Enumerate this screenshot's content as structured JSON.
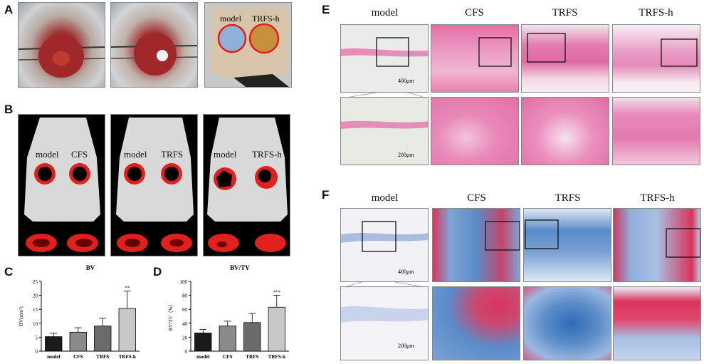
{
  "panels": {
    "A": {
      "label": "A",
      "tags": [
        "model",
        "TRFS-h"
      ]
    },
    "B": {
      "label": "B",
      "tags": [
        "model",
        "CFS",
        "model",
        "TRFS",
        "model",
        "TRFS-h"
      ]
    },
    "C": {
      "label": "C"
    },
    "D": {
      "label": "D"
    },
    "E": {
      "label": "E",
      "headers": [
        "model",
        "CFS",
        "TRFS",
        "TRFS-h"
      ],
      "scale_top": "400μm",
      "scale_bottom": "200μm"
    },
    "F": {
      "label": "F",
      "headers": [
        "model",
        "CFS",
        "TRFS",
        "TRFS-h"
      ],
      "scale_top": "400μm",
      "scale_bottom": "200μm"
    }
  },
  "colors": {
    "defect_ring": "#e0201c",
    "bone": "#d9d9d9",
    "he_pink": "#e98cb8",
    "masson_blue": "#5a8cc8",
    "masson_red": "#d9345c"
  },
  "chart_data": [
    {
      "type": "bar",
      "title": "BV",
      "ylabel": "BV(mm³)",
      "categories": [
        "model",
        "CFS",
        "TRFS",
        "TRFS-h"
      ],
      "values": [
        5.2,
        6.8,
        9.0,
        15.3
      ],
      "errors": [
        1.2,
        1.6,
        2.8,
        6.2
      ],
      "significance": [
        "",
        "",
        "",
        "**"
      ],
      "ylim": [
        0,
        25
      ],
      "yticks": [
        "0",
        "5",
        "10",
        "15",
        "20",
        "25"
      ],
      "colors": [
        "#1a1a1a",
        "#8a8a8a",
        "#6b6b6b",
        "#c8c8c8"
      ]
    },
    {
      "type": "bar",
      "title": "BV/TV",
      "ylabel": "BV/TV（%）",
      "categories": [
        "model",
        "CFS",
        "TRFS",
        "TRFS-h"
      ],
      "values": [
        26,
        36,
        41,
        63
      ],
      "errors": [
        5,
        7,
        13,
        17
      ],
      "significance": [
        "",
        "",
        "",
        "***"
      ],
      "ylim": [
        0,
        100
      ],
      "yticks": [
        "0",
        "20",
        "40",
        "60",
        "80",
        "100"
      ],
      "colors": [
        "#1a1a1a",
        "#8a8a8a",
        "#6b6b6b",
        "#c8c8c8"
      ]
    }
  ]
}
